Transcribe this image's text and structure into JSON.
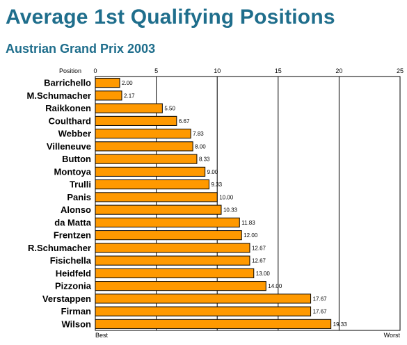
{
  "chart_data": {
    "type": "bar",
    "orientation": "horizontal",
    "title": "Average 1st Qualifying Positions",
    "subtitle": "Austrian Grand Prix 2003",
    "xlabel": "Position",
    "xlim": [
      0,
      25
    ],
    "x_ticks": [
      0,
      5,
      10,
      15,
      20,
      25
    ],
    "x_min_label": "Best",
    "x_max_label": "Worst",
    "grid": true,
    "bar_color": "#ff9900",
    "categories": [
      "Barrichello",
      "M.Schumacher",
      "Raikkonen",
      "Coulthard",
      "Webber",
      "Villeneuve",
      "Button",
      "Montoya",
      "Trulli",
      "Panis",
      "Alonso",
      "da Matta",
      "Frentzen",
      "R.Schumacher",
      "Fisichella",
      "Heidfeld",
      "Pizzonia",
      "Verstappen",
      "Firman",
      "Wilson"
    ],
    "values": [
      2.0,
      2.17,
      5.5,
      6.67,
      7.83,
      8.0,
      8.33,
      9.0,
      9.33,
      10.0,
      10.33,
      11.83,
      12.0,
      12.67,
      12.67,
      13.0,
      14.0,
      17.67,
      17.67,
      19.33
    ],
    "value_labels": [
      "2.00",
      "2.17",
      "5.50",
      "6.67",
      "7.83",
      "8.00",
      "8.33",
      "9.00",
      "9.33",
      "10.00",
      "10.33",
      "11.83",
      "12.00",
      "12.67",
      "12.67",
      "13.00",
      "14.00",
      "17.67",
      "17.67",
      "19.33"
    ]
  }
}
